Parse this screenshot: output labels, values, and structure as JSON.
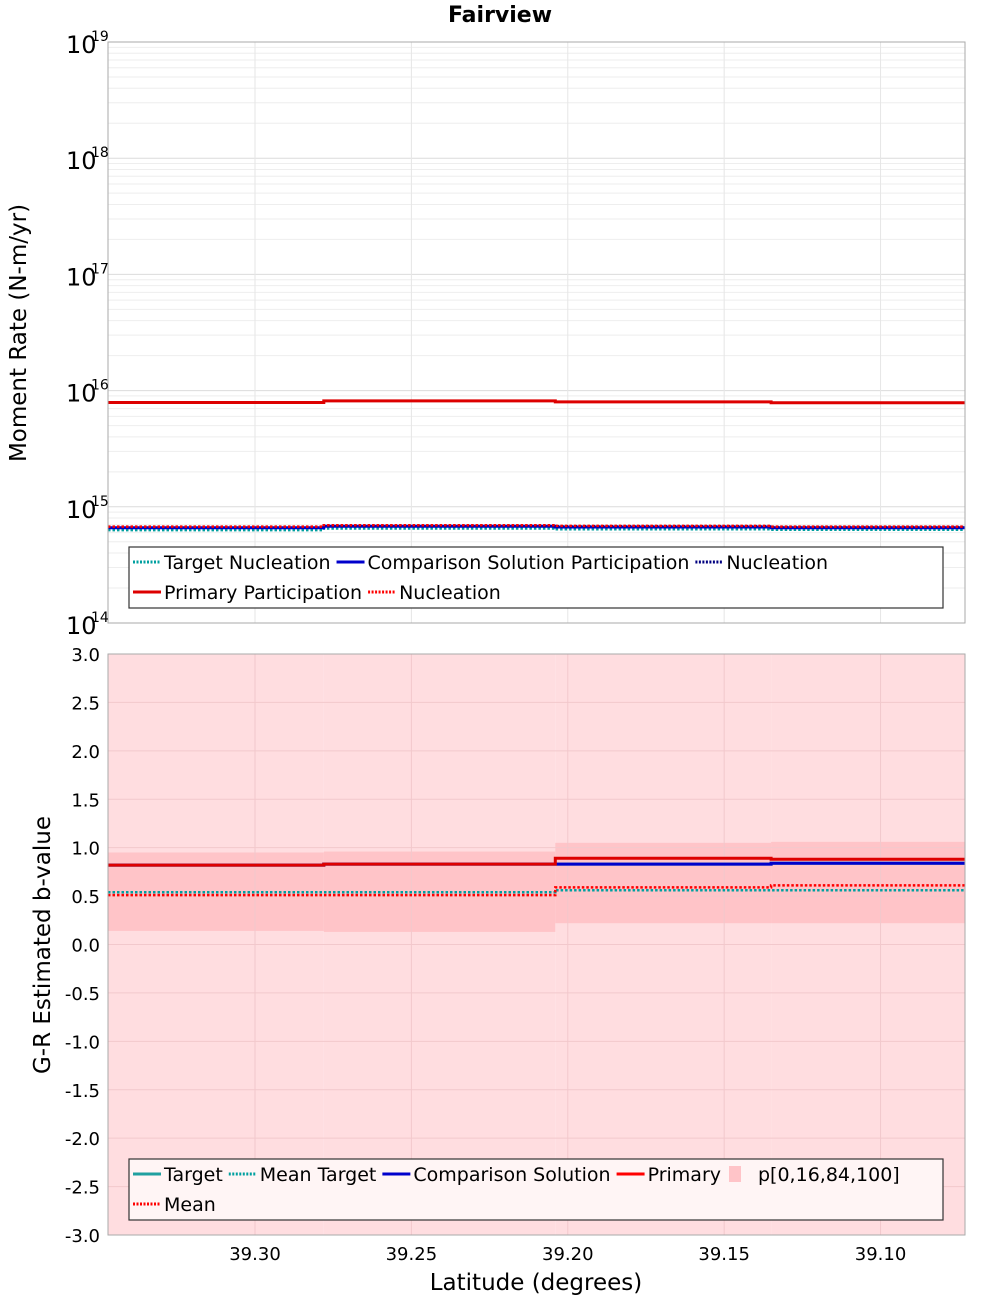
{
  "title": "Fairview",
  "chart_data": [
    {
      "type": "line",
      "panel": "top",
      "ylabel": "Moment Rate (N-m/yr)",
      "yscale": "log",
      "ylim": [
        100000000000000.0,
        1e+19
      ],
      "xlim": [
        39.347,
        39.073
      ],
      "x_reversed": true,
      "ytick_base": "10",
      "ytick_exponents": [
        "14",
        "15",
        "16",
        "17",
        "18",
        "19"
      ],
      "x_edges": [
        39.347,
        39.278,
        39.204,
        39.135,
        39.073
      ],
      "series": [
        {
          "name": "Target Nucleation",
          "style": "dotted",
          "color": "#00a0a0",
          "values": [
            630000000000000.0,
            650000000000000.0,
            640000000000000.0,
            635000000000000.0
          ]
        },
        {
          "name": "Comparison Solution Participation",
          "style": "solid",
          "color": "#0000cc",
          "values": [
            660000000000000.0,
            680000000000000.0,
            670000000000000.0,
            660000000000000.0
          ]
        },
        {
          "name": "Nucleation",
          "style": "dotted",
          "color": "#000080",
          "values": [
            670000000000000.0,
            685000000000000.0,
            680000000000000.0,
            670000000000000.0
          ]
        },
        {
          "name": "Primary Participation",
          "style": "solid",
          "color": "#dd0000",
          "values": [
            7900000000000000.0,
            8150000000000000.0,
            8000000000000000.0,
            7850000000000000.0
          ]
        },
        {
          "name": "Nucleation",
          "style": "dotted",
          "color": "#ff0000",
          "values": [
            675000000000000.0,
            695000000000000.0,
            685000000000000.0,
            675000000000000.0
          ]
        }
      ],
      "legend": {
        "rows": [
          [
            {
              "label": "Target Nucleation",
              "style": "dotted",
              "color": "#00a0a0"
            },
            {
              "label": "Comparison Solution Participation",
              "style": "solid",
              "color": "#0000cc"
            },
            {
              "label": "Nucleation",
              "style": "dotted",
              "color": "#000080"
            }
          ],
          [
            {
              "label": "Primary Participation",
              "style": "solid",
              "color": "#dd0000"
            },
            {
              "label": "Nucleation",
              "style": "dotted",
              "color": "#ff0000"
            }
          ]
        ]
      }
    },
    {
      "type": "line",
      "panel": "bottom",
      "ylabel": "G-R Estimated b-value",
      "xlabel": "Latitude (degrees)",
      "ylim": [
        -3.0,
        3.0
      ],
      "xlim": [
        39.347,
        39.073
      ],
      "x_reversed": true,
      "yticks": [
        "3.0",
        "2.5",
        "2.0",
        "1.5",
        "1.0",
        "0.5",
        "0.0",
        "-0.5",
        "-1.0",
        "-1.5",
        "-2.0",
        "-2.5",
        "-3.0"
      ],
      "xticks": [
        "39.30",
        "39.25",
        "39.20",
        "39.15",
        "39.10"
      ],
      "x_edges": [
        39.347,
        39.278,
        39.204,
        39.135,
        39.073
      ],
      "band_p0_100": {
        "color": "#ffdde0",
        "lower": [
          -3.0,
          -3.0,
          -3.0,
          -3.0
        ],
        "upper": [
          3.0,
          3.0,
          3.0,
          3.0
        ]
      },
      "band_p16_84": {
        "color": "#ffc4c8",
        "lower": [
          0.14,
          0.13,
          0.22,
          0.22
        ],
        "upper": [
          0.95,
          0.96,
          1.05,
          1.06
        ]
      },
      "series": [
        {
          "name": "Target",
          "style": "solid",
          "color": "#20a0a0",
          "values": [
            0.82,
            0.83,
            0.83,
            0.84
          ]
        },
        {
          "name": "Mean Target",
          "style": "dotted",
          "color": "#00a0a0",
          "values": [
            0.54,
            0.54,
            0.56,
            0.56
          ]
        },
        {
          "name": "Comparison Solution",
          "style": "solid",
          "color": "#0000cc",
          "values": [
            0.82,
            0.83,
            0.83,
            0.84
          ]
        },
        {
          "name": "Primary",
          "style": "solid",
          "color": "#dd0000",
          "values": [
            0.82,
            0.83,
            0.89,
            0.88
          ]
        },
        {
          "name": "Mean",
          "style": "dotted",
          "color": "#ff0000",
          "values": [
            0.51,
            0.51,
            0.59,
            0.61
          ]
        }
      ],
      "legend": {
        "rows": [
          [
            {
              "label": "Target",
              "style": "solid",
              "color": "#20a0a0"
            },
            {
              "label": "Mean Target",
              "style": "dotted",
              "color": "#00a0a0"
            },
            {
              "label": "Comparison Solution",
              "style": "solid",
              "color": "#0000cc"
            },
            {
              "label": "Primary",
              "style": "solid",
              "color": "#ff0000"
            },
            {
              "label": "p[0,16,84,100]",
              "style": "box",
              "color": "#ffdde0"
            }
          ],
          [
            {
              "label": "Mean",
              "style": "dotted",
              "color": "#ff0000"
            }
          ]
        ]
      }
    }
  ]
}
